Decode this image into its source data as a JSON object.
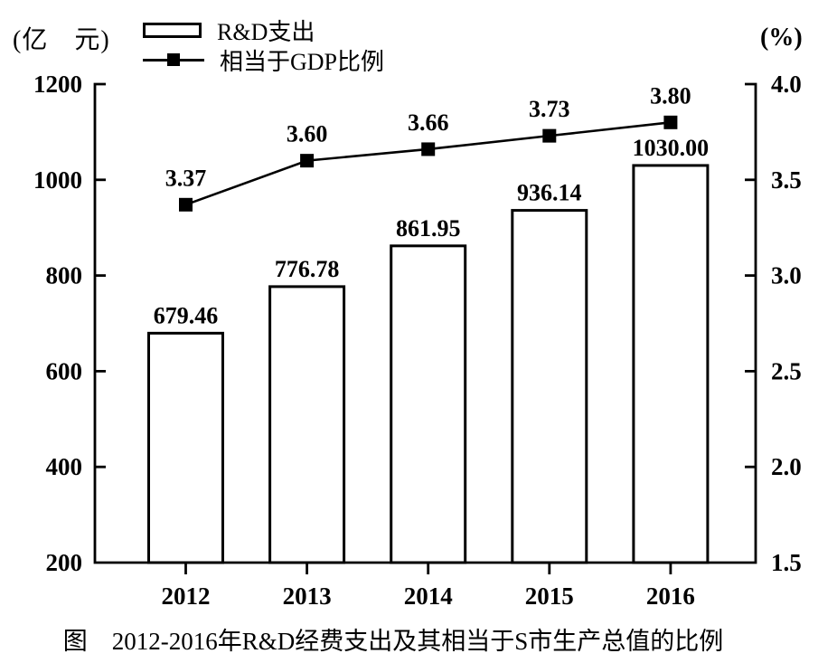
{
  "title": "图　2012-2016年R&D经费支出及其相当于S市生产总值的比例",
  "legend": {
    "bar_label": "R&D支出",
    "line_label": "相当于GDP比例"
  },
  "chart_data": {
    "type": "bar+line combo",
    "title": "图　2012-2016年R&D经费支出及其相当于S市生产总值的比例",
    "categories": [
      "2012",
      "2013",
      "2014",
      "2015",
      "2016"
    ],
    "series": [
      {
        "name": "R&D支出",
        "type": "bar",
        "axis": "left",
        "values": [
          679.46,
          776.78,
          861.95,
          936.14,
          1030.0
        ],
        "labels": [
          "679.46",
          "776.78",
          "861.95",
          "936.14",
          "1030.00"
        ]
      },
      {
        "name": "相当于GDP比例",
        "type": "line",
        "axis": "right",
        "values": [
          3.37,
          3.6,
          3.66,
          3.73,
          3.8
        ],
        "labels": [
          "3.37",
          "3.60",
          "3.66",
          "3.73",
          "3.80"
        ]
      }
    ],
    "left_axis": {
      "label": "(亿　元)",
      "min": 200,
      "max": 1200,
      "ticks": [
        "200",
        "400",
        "600",
        "800",
        "1000",
        "1200"
      ]
    },
    "right_axis": {
      "label": "(%)",
      "min": 1.5,
      "max": 4.0,
      "ticks": [
        "1.5",
        "2.0",
        "2.5",
        "3.0",
        "3.5",
        "4.0"
      ]
    },
    "grid": "off",
    "legend_position": "top-left",
    "colors": {
      "background": "#ffffff",
      "bar_fill": "#ffffff",
      "bar_border": "#000000",
      "line": "#000000",
      "marker": "#000000",
      "text": "#000000"
    }
  }
}
